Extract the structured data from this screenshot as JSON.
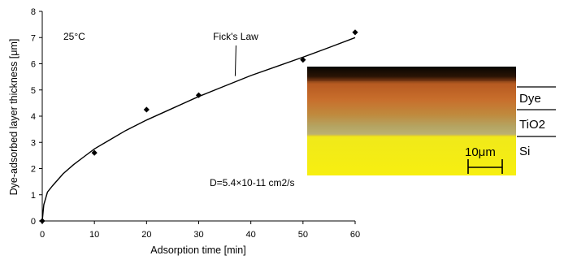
{
  "chart_data": {
    "type": "scatter",
    "title": "",
    "xlabel": "Adsorption time [min]",
    "ylabel": "Dye-adsorbed layer thickness [μm]",
    "xlim": [
      0,
      60
    ],
    "ylim": [
      0,
      8
    ],
    "x_ticks": [
      0,
      10,
      20,
      30,
      40,
      50,
      60
    ],
    "y_ticks": [
      0,
      1,
      2,
      3,
      4,
      5,
      6,
      7,
      8
    ],
    "grid": false,
    "series": [
      {
        "kind": "points",
        "x": [
          0,
          10,
          20,
          30,
          50,
          60
        ],
        "y": [
          0,
          2.6,
          4.25,
          4.8,
          6.15,
          7.2
        ]
      },
      {
        "kind": "line",
        "x": [
          0,
          0.3,
          1,
          2,
          4,
          6,
          8,
          10,
          13,
          16,
          20,
          25,
          30,
          35,
          40,
          45,
          50,
          55,
          60
        ],
        "y": [
          0,
          0.62,
          1.1,
          1.35,
          1.8,
          2.15,
          2.45,
          2.75,
          3.1,
          3.45,
          3.85,
          4.3,
          4.75,
          5.15,
          5.55,
          5.9,
          6.25,
          6.62,
          7.0
        ]
      }
    ],
    "annotations": {
      "temperature": "25°C",
      "model": "Fick's Law",
      "model_x": 37,
      "model_y": 5.5,
      "diffusion": "D=5.4×10-11 cm2/s"
    }
  },
  "inset": {
    "layers": [
      "Dye",
      "TiO2",
      "Si"
    ],
    "scale_bar": "10μm",
    "colors": {
      "dye": "#c2622a",
      "tio2": "#a8a86a",
      "si": "#f4ec12",
      "top": "#0a0603"
    }
  }
}
